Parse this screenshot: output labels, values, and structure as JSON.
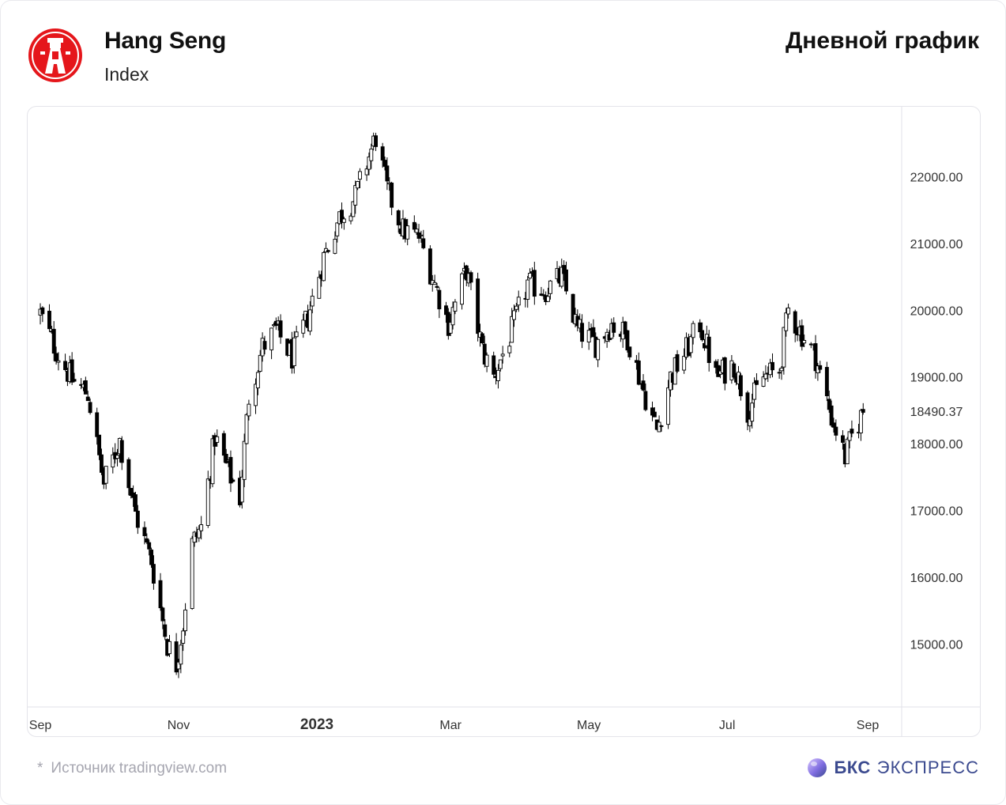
{
  "header": {
    "title": "Hang Seng",
    "subtitle": "Index",
    "chart_kind": "Дневной график"
  },
  "footer": {
    "star": "*",
    "source": "Источник tradingview.com",
    "brand_bold": "БКС",
    "brand_regular": "ЭКСПРЕСС"
  },
  "colors": {
    "up_fill": "#ffffff",
    "down_fill": "#000000",
    "candle_outline": "#000000",
    "logo_red": "#e5161b",
    "brand": "#3b4a8f",
    "axis_text": "#333333"
  },
  "chart_data": {
    "type": "candlestick",
    "y_axis_ticks": [
      15000,
      16000,
      17000,
      18000,
      19000,
      20000,
      21000,
      22000
    ],
    "y_tick_labels": [
      "15000.00",
      "16000.00",
      "17000.00",
      "18000.00",
      "19000.00",
      "20000.00",
      "21000.00",
      "22000.00"
    ],
    "ylim": [
      14400,
      22900
    ],
    "last_price": 18490.37,
    "last_price_label": "18490.37",
    "x_axis_labels": [
      {
        "label": "Sep",
        "date": "2022-09-01",
        "bold": false
      },
      {
        "label": "Nov",
        "date": "2022-11-01",
        "bold": false
      },
      {
        "label": "2023",
        "date": "2023-01-01",
        "bold": true
      },
      {
        "label": "Mar",
        "date": "2023-03-01",
        "bold": false
      },
      {
        "label": "May",
        "date": "2023-05-01",
        "bold": false
      },
      {
        "label": "Jul",
        "date": "2023-07-01",
        "bold": false
      },
      {
        "label": "Sep",
        "date": "2023-09-01",
        "bold": false
      }
    ],
    "close_path": [
      [
        "2022-09-01",
        19950
      ],
      [
        "2022-09-08",
        19400
      ],
      [
        "2022-09-15",
        18950
      ],
      [
        "2022-09-22",
        18750
      ],
      [
        "2022-09-29",
        17400
      ],
      [
        "2022-10-06",
        18050
      ],
      [
        "2022-10-13",
        16950
      ],
      [
        "2022-10-20",
        16250
      ],
      [
        "2022-10-27",
        15000
      ],
      [
        "2022-10-31",
        14700
      ],
      [
        "2022-11-03",
        15300
      ],
      [
        "2022-11-07",
        16500
      ],
      [
        "2022-11-11",
        16750
      ],
      [
        "2022-11-17",
        18100
      ],
      [
        "2022-11-24",
        17500
      ],
      [
        "2022-11-28",
        17200
      ],
      [
        "2022-12-02",
        18700
      ],
      [
        "2022-12-08",
        19450
      ],
      [
        "2022-12-14",
        19700
      ],
      [
        "2022-12-21",
        19300
      ],
      [
        "2022-12-28",
        19900
      ],
      [
        "2023-01-04",
        20800
      ],
      [
        "2023-01-11",
        21400
      ],
      [
        "2023-01-18",
        21700
      ],
      [
        "2023-01-27",
        22600
      ],
      [
        "2023-02-01",
        21800
      ],
      [
        "2023-02-08",
        21200
      ],
      [
        "2023-02-15",
        21100
      ],
      [
        "2023-02-22",
        20400
      ],
      [
        "2023-02-28",
        19800
      ],
      [
        "2023-03-08",
        20600
      ],
      [
        "2023-03-15",
        19400
      ],
      [
        "2023-03-20",
        19000
      ],
      [
        "2023-03-27",
        19600
      ],
      [
        "2023-04-04",
        20400
      ],
      [
        "2023-04-12",
        20300
      ],
      [
        "2023-04-19",
        20500
      ],
      [
        "2023-04-26",
        19700
      ],
      [
        "2023-05-04",
        19500
      ],
      [
        "2023-05-11",
        19800
      ],
      [
        "2023-05-18",
        19600
      ],
      [
        "2023-05-25",
        18800
      ],
      [
        "2023-05-31",
        18200
      ],
      [
        "2023-06-06",
        19000
      ],
      [
        "2023-06-13",
        19400
      ],
      [
        "2023-06-19",
        19800
      ],
      [
        "2023-06-26",
        19000
      ],
      [
        "2023-07-04",
        19200
      ],
      [
        "2023-07-10",
        18500
      ],
      [
        "2023-07-17",
        19000
      ],
      [
        "2023-07-24",
        19100
      ],
      [
        "2023-07-28",
        20000
      ],
      [
        "2023-08-02",
        19700
      ],
      [
        "2023-08-09",
        19300
      ],
      [
        "2023-08-16",
        18400
      ],
      [
        "2023-08-22",
        17800
      ],
      [
        "2023-08-25",
        18100
      ],
      [
        "2023-08-30",
        18490
      ]
    ]
  }
}
